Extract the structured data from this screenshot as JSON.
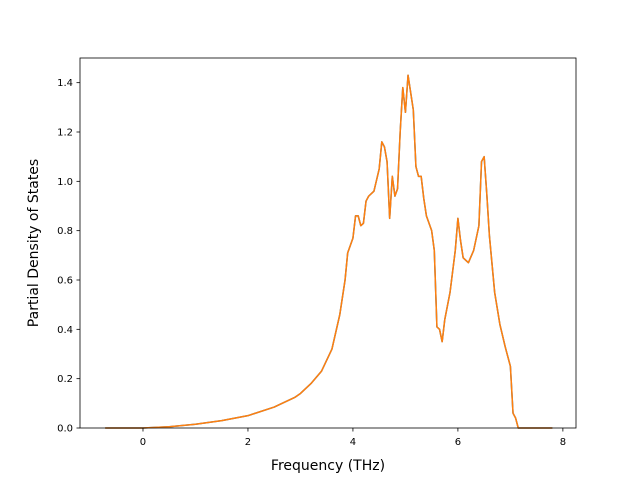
{
  "chart_data": {
    "type": "line",
    "xlabel": "Frequency (THz)",
    "ylabel": "Partial Density of States",
    "xlim": [
      -1.2,
      8.25
    ],
    "ylim": [
      0.0,
      1.5
    ],
    "x_ticks": [
      0,
      2,
      4,
      6,
      8
    ],
    "x_tick_labels": [
      "0",
      "2",
      "4",
      "6",
      "8"
    ],
    "y_ticks": [
      0.0,
      0.2,
      0.4,
      0.6,
      0.8,
      1.0,
      1.2,
      1.4
    ],
    "y_tick_labels": [
      "0.0",
      "0.2",
      "0.4",
      "0.6",
      "0.8",
      "1.0",
      "1.2",
      "1.4"
    ],
    "grid": false,
    "line_colors": [
      "#1f77b4",
      "#ff7f0e"
    ],
    "series": [
      {
        "points": [
          [
            -0.72,
            0.0
          ],
          [
            0.0,
            0.0
          ],
          [
            0.5,
            0.005
          ],
          [
            1.0,
            0.015
          ],
          [
            1.5,
            0.03
          ],
          [
            2.0,
            0.05
          ],
          [
            2.5,
            0.085
          ],
          [
            2.9,
            0.125
          ],
          [
            3.0,
            0.14
          ],
          [
            3.2,
            0.18
          ],
          [
            3.4,
            0.23
          ],
          [
            3.6,
            0.32
          ],
          [
            3.75,
            0.46
          ],
          [
            3.85,
            0.6
          ],
          [
            3.9,
            0.71
          ],
          [
            4.0,
            0.77
          ],
          [
            4.05,
            0.86
          ],
          [
            4.1,
            0.86
          ],
          [
            4.15,
            0.82
          ],
          [
            4.2,
            0.83
          ],
          [
            4.25,
            0.92
          ],
          [
            4.3,
            0.94
          ],
          [
            4.4,
            0.96
          ],
          [
            4.5,
            1.05
          ],
          [
            4.55,
            1.16
          ],
          [
            4.6,
            1.14
          ],
          [
            4.65,
            1.08
          ],
          [
            4.7,
            0.85
          ],
          [
            4.75,
            1.02
          ],
          [
            4.8,
            0.94
          ],
          [
            4.85,
            0.97
          ],
          [
            4.9,
            1.2
          ],
          [
            4.95,
            1.38
          ],
          [
            5.0,
            1.28
          ],
          [
            5.05,
            1.43
          ],
          [
            5.1,
            1.36
          ],
          [
            5.15,
            1.29
          ],
          [
            5.2,
            1.06
          ],
          [
            5.25,
            1.02
          ],
          [
            5.3,
            1.02
          ],
          [
            5.35,
            0.93
          ],
          [
            5.4,
            0.86
          ],
          [
            5.5,
            0.8
          ],
          [
            5.55,
            0.72
          ],
          [
            5.6,
            0.41
          ],
          [
            5.65,
            0.4
          ],
          [
            5.7,
            0.35
          ],
          [
            5.75,
            0.44
          ],
          [
            5.85,
            0.55
          ],
          [
            5.95,
            0.72
          ],
          [
            6.0,
            0.85
          ],
          [
            6.05,
            0.76
          ],
          [
            6.1,
            0.69
          ],
          [
            6.2,
            0.67
          ],
          [
            6.3,
            0.72
          ],
          [
            6.4,
            0.82
          ],
          [
            6.45,
            1.08
          ],
          [
            6.5,
            1.1
          ],
          [
            6.55,
            0.95
          ],
          [
            6.6,
            0.78
          ],
          [
            6.7,
            0.55
          ],
          [
            6.8,
            0.42
          ],
          [
            6.9,
            0.33
          ],
          [
            7.0,
            0.25
          ],
          [
            7.05,
            0.06
          ],
          [
            7.1,
            0.04
          ],
          [
            7.15,
            0.0
          ],
          [
            7.5,
            0.0
          ],
          [
            7.8,
            0.0
          ]
        ]
      },
      {
        "points": [
          [
            -0.72,
            0.0
          ],
          [
            0.0,
            0.0
          ],
          [
            0.5,
            0.005
          ],
          [
            1.0,
            0.015
          ],
          [
            1.5,
            0.03
          ],
          [
            2.0,
            0.05
          ],
          [
            2.5,
            0.085
          ],
          [
            2.9,
            0.125
          ],
          [
            3.0,
            0.14
          ],
          [
            3.2,
            0.18
          ],
          [
            3.4,
            0.23
          ],
          [
            3.6,
            0.32
          ],
          [
            3.75,
            0.46
          ],
          [
            3.85,
            0.6
          ],
          [
            3.9,
            0.71
          ],
          [
            4.0,
            0.77
          ],
          [
            4.05,
            0.86
          ],
          [
            4.1,
            0.86
          ],
          [
            4.15,
            0.82
          ],
          [
            4.2,
            0.83
          ],
          [
            4.25,
            0.92
          ],
          [
            4.3,
            0.94
          ],
          [
            4.4,
            0.96
          ],
          [
            4.5,
            1.05
          ],
          [
            4.55,
            1.16
          ],
          [
            4.6,
            1.14
          ],
          [
            4.65,
            1.08
          ],
          [
            4.7,
            0.85
          ],
          [
            4.75,
            1.02
          ],
          [
            4.8,
            0.94
          ],
          [
            4.85,
            0.97
          ],
          [
            4.9,
            1.2
          ],
          [
            4.95,
            1.38
          ],
          [
            5.0,
            1.28
          ],
          [
            5.05,
            1.43
          ],
          [
            5.1,
            1.36
          ],
          [
            5.15,
            1.29
          ],
          [
            5.2,
            1.06
          ],
          [
            5.25,
            1.02
          ],
          [
            5.3,
            1.02
          ],
          [
            5.35,
            0.93
          ],
          [
            5.4,
            0.86
          ],
          [
            5.5,
            0.8
          ],
          [
            5.55,
            0.72
          ],
          [
            5.6,
            0.41
          ],
          [
            5.65,
            0.4
          ],
          [
            5.7,
            0.35
          ],
          [
            5.75,
            0.44
          ],
          [
            5.85,
            0.55
          ],
          [
            5.95,
            0.72
          ],
          [
            6.0,
            0.85
          ],
          [
            6.05,
            0.76
          ],
          [
            6.1,
            0.69
          ],
          [
            6.2,
            0.67
          ],
          [
            6.3,
            0.72
          ],
          [
            6.4,
            0.82
          ],
          [
            6.45,
            1.08
          ],
          [
            6.5,
            1.1
          ],
          [
            6.55,
            0.95
          ],
          [
            6.6,
            0.78
          ],
          [
            6.7,
            0.55
          ],
          [
            6.8,
            0.42
          ],
          [
            6.9,
            0.33
          ],
          [
            7.0,
            0.25
          ],
          [
            7.05,
            0.06
          ],
          [
            7.1,
            0.04
          ],
          [
            7.15,
            0.0
          ],
          [
            7.5,
            0.0
          ],
          [
            7.8,
            0.0
          ]
        ]
      }
    ]
  }
}
